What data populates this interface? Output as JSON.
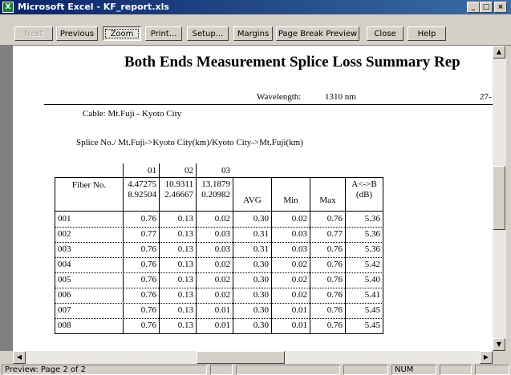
{
  "window": {
    "title": "Microsoft Excel - KF_report.xls"
  },
  "toolbar": {
    "buttons": [
      "Next",
      "Previous",
      "Zoom",
      "Print...",
      "Setup...",
      "Margins",
      "Page Break Preview",
      "Close",
      "Help"
    ]
  },
  "page": {
    "title": "Both Ends Measurement Splice Loss Summary Rep",
    "wavelength_label": "Wavelength:",
    "wavelength": "1310 nm",
    "date_fragment": "27-",
    "cable": "Cable: Mt.Fuji - Kyoto City",
    "splice_note": "Splice No./ Mt.Fuji->Kyoto City(km)/Kyoto City->Mt.Fuji(km)",
    "table": {
      "splice_numbers": [
        "01",
        "02",
        "03"
      ],
      "header": [
        [
          "Fiber No."
        ],
        [
          "4.47275",
          "8.92504"
        ],
        [
          "10.9311",
          "2.46667"
        ],
        [
          "13.1879",
          "0.20982"
        ],
        [
          "AVG"
        ],
        [
          "Min"
        ],
        [
          "Max"
        ],
        [
          "A<->B",
          "(dB)"
        ]
      ],
      "rows": [
        [
          "001",
          "0.76",
          "0.13",
          "0.02",
          "0.30",
          "0.02",
          "0.76",
          "5.36"
        ],
        [
          "002",
          "0.77",
          "0.13",
          "0.03",
          "0.31",
          "0.03",
          "0.77",
          "5.36"
        ],
        [
          "003",
          "0.76",
          "0.13",
          "0.03",
          "0.31",
          "0.03",
          "0.76",
          "5.36"
        ],
        [
          "004",
          "0.76",
          "0.13",
          "0.02",
          "0.30",
          "0.02",
          "0.76",
          "5.42"
        ],
        [
          "005",
          "0.76",
          "0.13",
          "0.02",
          "0.30",
          "0.02",
          "0.76",
          "5.40"
        ],
        [
          "006",
          "0.76",
          "0.13",
          "0.02",
          "0.30",
          "0.02",
          "0.76",
          "5.41"
        ],
        [
          "007",
          "0.76",
          "0.13",
          "0.01",
          "0.30",
          "0.01",
          "0.76",
          "5.45"
        ],
        [
          "008",
          "0.76",
          "0.13",
          "0.01",
          "0.30",
          "0.01",
          "0.76",
          "5.45"
        ]
      ]
    }
  },
  "status": {
    "text": "Preview: Page 2 of 2",
    "num": "NUM"
  }
}
